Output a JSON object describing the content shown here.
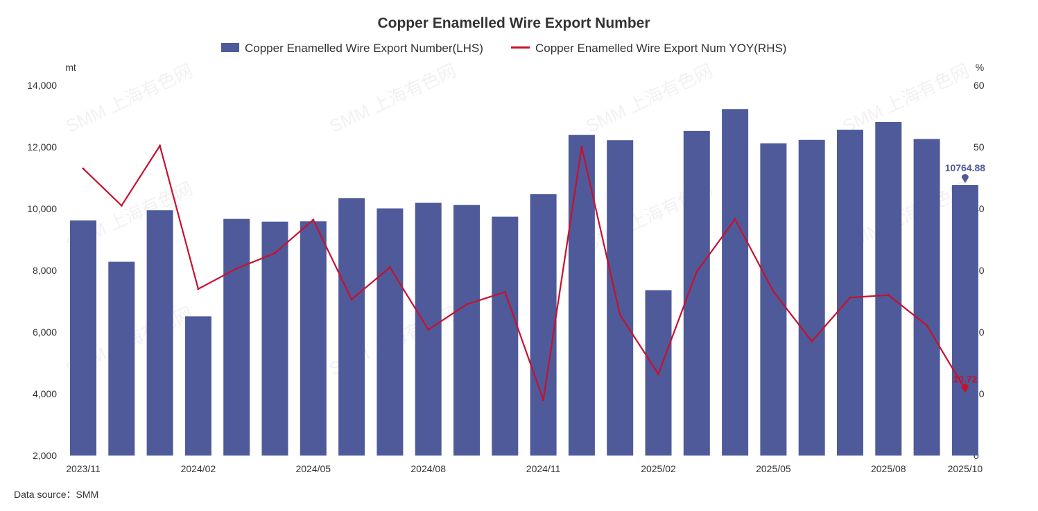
{
  "colors": {
    "bar": "#4e5a99",
    "line": "#c8102e"
  },
  "chart_data": {
    "type": "bar",
    "title": "Copper Enamelled Wire Export Number",
    "left_unit": "mt",
    "right_unit": "%",
    "ylim_left": [
      2000,
      14000
    ],
    "yticks_left": [
      "2,000",
      "4,000",
      "6,000",
      "8,000",
      "10,000",
      "12,000",
      "14,000"
    ],
    "ylim_right": [
      0,
      60
    ],
    "yticks_right": [
      "0",
      "10",
      "20",
      "30",
      "40",
      "50",
      "60"
    ],
    "categories": [
      "2023/11",
      "2023/12",
      "2024/01",
      "2024/02",
      "2024/03",
      "2024/04",
      "2024/05",
      "2024/06",
      "2024/07",
      "2024/08",
      "2024/09",
      "2024/10",
      "2024/11",
      "2024/12",
      "2025/01",
      "2025/02",
      "2025/03",
      "2025/04",
      "2025/05",
      "2025/06",
      "2025/07",
      "2025/08",
      "2025/09",
      "2025/10"
    ],
    "xtick_labels": [
      {
        "index": 0,
        "label": "2023/11"
      },
      {
        "index": 3,
        "label": "2024/02"
      },
      {
        "index": 6,
        "label": "2024/05"
      },
      {
        "index": 9,
        "label": "2024/08"
      },
      {
        "index": 12,
        "label": "2024/11"
      },
      {
        "index": 15,
        "label": "2025/02"
      },
      {
        "index": 18,
        "label": "2025/05"
      },
      {
        "index": 21,
        "label": "2025/08"
      },
      {
        "index": 23,
        "label": "2025/10"
      }
    ],
    "series": [
      {
        "name": "Copper Enamelled Wire Export Number(LHS)",
        "type": "bar",
        "axis": "left",
        "values": [
          9620,
          8280,
          9950,
          6510,
          9670,
          9580,
          9590,
          10340,
          10010,
          10190,
          10120,
          9740,
          10470,
          12390,
          12220,
          7360,
          12520,
          13230,
          12120,
          12230,
          12560,
          12810,
          12260,
          10764.88
        ]
      },
      {
        "name": "Copper Enamelled Wire Export Num YOY(RHS)",
        "type": "line",
        "axis": "right",
        "values": [
          46.5,
          40.5,
          50.2,
          27.0,
          30.3,
          32.8,
          38.2,
          25.3,
          30.5,
          20.4,
          24.5,
          26.5,
          9.0,
          50.0,
          22.8,
          13.2,
          29.8,
          38.3,
          26.6,
          18.5,
          25.6,
          26.0,
          21.1,
          10.72
        ]
      }
    ],
    "data_labels": [
      {
        "series": 0,
        "index": 23,
        "text": "10764.88"
      },
      {
        "series": 1,
        "index": 23,
        "text": "10.72"
      }
    ],
    "source": "Data source：SMM",
    "watermark": "SMM 上海有色网",
    "legend": "top-center",
    "grid": false
  }
}
